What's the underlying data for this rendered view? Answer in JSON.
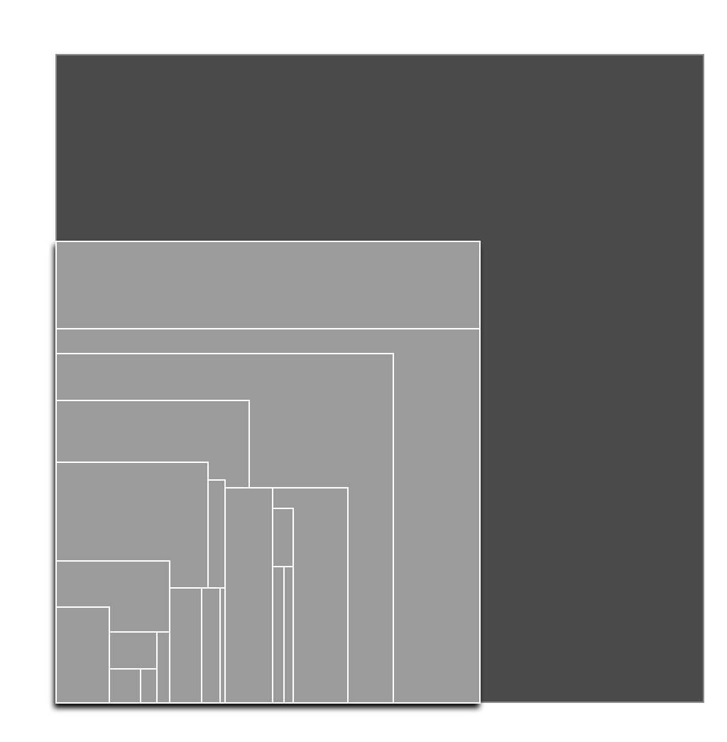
{
  "colors": {
    "background": "#ffffff",
    "outer_square": "#4a4a4a",
    "outer_border": "#8c8c8c",
    "inner_fill": "#9b9b9b",
    "inner_border": "#ffffff",
    "shadow": "#000000"
  },
  "diagram": {
    "outer_shape": "square",
    "inner_shape": "rectangle",
    "inner_rectangle_count": 20
  }
}
